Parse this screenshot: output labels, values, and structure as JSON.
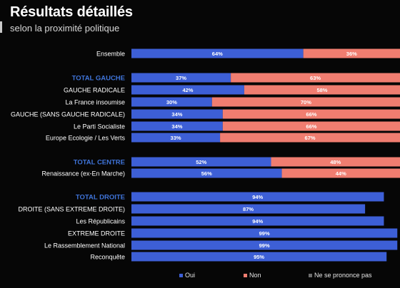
{
  "title": "Résultats détaillés",
  "subtitle": "selon la proximité politique",
  "colors": {
    "oui": "#3d5fd6",
    "non": "#f07d70",
    "nsp": "#6c6c6c",
    "label": "#ffffff",
    "header": "#3f74d9"
  },
  "legend": [
    {
      "key": "oui",
      "label": "Oui"
    },
    {
      "key": "non",
      "label": "Non"
    },
    {
      "key": "nsp",
      "label": "Ne se prononce pas"
    }
  ],
  "chart_data": {
    "type": "bar",
    "stacked": true,
    "orientation": "horizontal",
    "categories": [
      "Ensemble",
      "TOTAL GAUCHE",
      "GAUCHE RADICALE",
      "La France insoumise",
      "GAUCHE (SANS GAUCHE RADICALE)",
      "Le Parti Socialiste",
      "Europe Ecologie / Les Verts",
      "TOTAL CENTRE",
      "Renaissance (ex-En Marche)",
      "TOTAL DROITE",
      "DROITE (SANS EXTREME DROITE)",
      "Les Républicains",
      "EXTREME DROITE",
      "Le Rassemblement National",
      "Reconquête"
    ],
    "header_rows": [
      "TOTAL GAUCHE",
      "TOTAL CENTRE",
      "TOTAL DROITE"
    ],
    "series": [
      {
        "name": "Oui",
        "values": [
          64,
          37,
          42,
          30,
          34,
          34,
          33,
          52,
          56,
          94,
          87,
          94,
          99,
          99,
          95
        ]
      },
      {
        "name": "Non",
        "values": [
          36,
          63,
          58,
          70,
          66,
          66,
          67,
          48,
          44,
          null,
          null,
          null,
          null,
          null,
          null
        ]
      }
    ],
    "value_labels": {
      "Oui": [
        "64%",
        "37%",
        "42%",
        "30%",
        "34%",
        "34%",
        "33%",
        "52%",
        "56%",
        "94%",
        "87%",
        "94%",
        "99%",
        "99%",
        "95%"
      ],
      "Non": [
        "36%",
        "63%",
        "58%",
        "70%",
        "66%",
        "66%",
        "67%",
        "48%",
        "44%",
        "",
        "",
        "",
        "",
        "",
        ""
      ]
    },
    "xlim": [
      0,
      100
    ]
  }
}
